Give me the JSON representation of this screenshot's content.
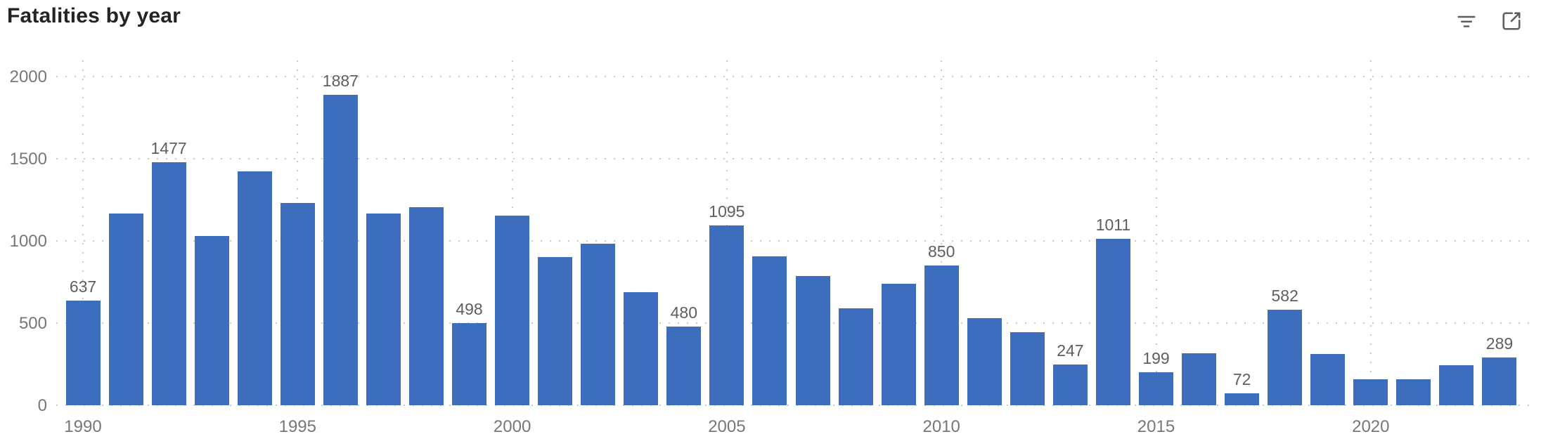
{
  "header": {
    "title": "Fatalities by year",
    "filter_icon_tooltip": "Filter",
    "focus_icon_tooltip": "Focus mode"
  },
  "colors": {
    "bar": "#3D6EBE",
    "title": "#252423",
    "axis_label": "#777775",
    "data_label": "#605E5C",
    "gridline": "#CCCACA",
    "icon": "#605E5C",
    "background": "#FFFFFF"
  },
  "chart_data": {
    "type": "bar",
    "title": "Fatalities by year",
    "xlabel": "",
    "ylabel": "",
    "ylim": [
      0,
      2000
    ],
    "grid": true,
    "legend": "none",
    "categories": [
      1990,
      1991,
      1992,
      1993,
      1994,
      1995,
      1996,
      1997,
      1998,
      1999,
      2000,
      2001,
      2002,
      2003,
      2004,
      2005,
      2006,
      2007,
      2008,
      2009,
      2010,
      2011,
      2012,
      2013,
      2014,
      2015,
      2016,
      2017,
      2018,
      2019,
      2020,
      2021,
      2022,
      2023
    ],
    "values": [
      637,
      1165,
      1477,
      1030,
      1425,
      1230,
      1887,
      1165,
      1205,
      498,
      1155,
      900,
      985,
      690,
      480,
      1095,
      905,
      785,
      590,
      740,
      850,
      530,
      445,
      247,
      1011,
      199,
      315,
      72,
      582,
      310,
      160,
      160,
      245,
      289
    ],
    "data_labels": [
      "637",
      "",
      "1477",
      "",
      "",
      "",
      "1887",
      "",
      "",
      "498",
      "",
      "",
      "",
      "",
      "480",
      "1095",
      "",
      "",
      "",
      "",
      "850",
      "",
      "",
      "247",
      "1011",
      "199",
      "",
      "72",
      "582",
      "",
      "",
      "",
      "",
      "289"
    ],
    "x_ticks": [
      1990,
      1995,
      2000,
      2005,
      2010,
      2015,
      2020
    ],
    "y_ticks": [
      0,
      500,
      1000,
      1500,
      2000
    ]
  }
}
